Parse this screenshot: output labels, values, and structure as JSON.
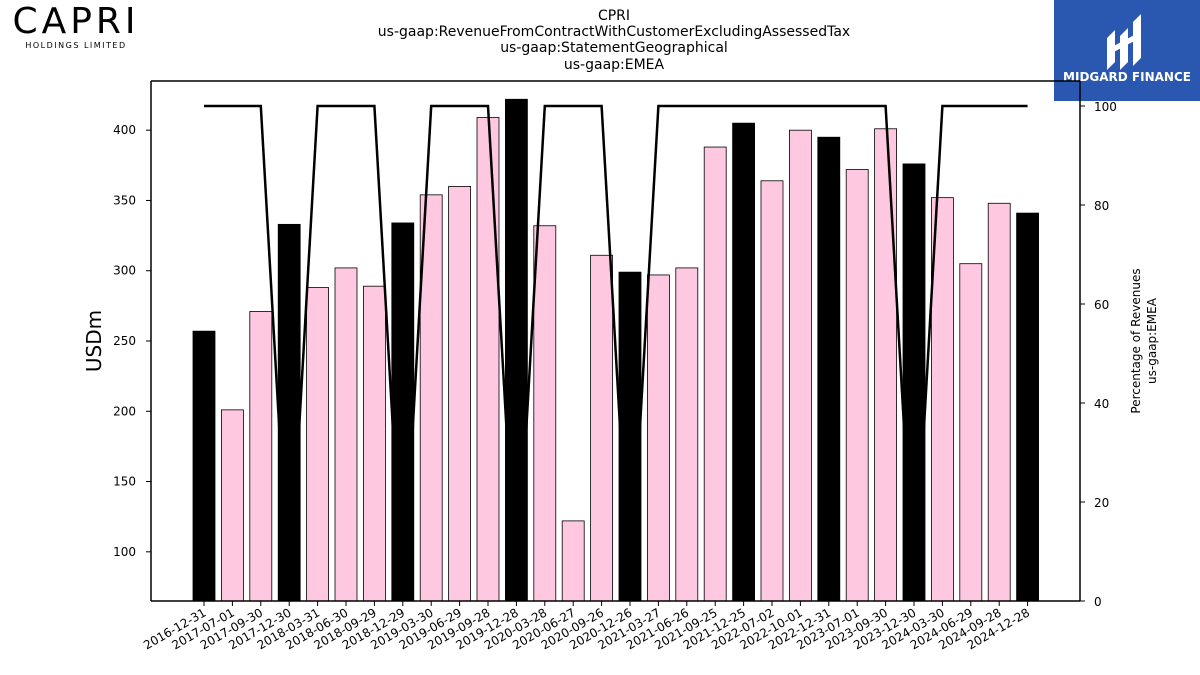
{
  "company_logo": {
    "name": "CAPRI",
    "tagline": "HOLDINGS LIMITED"
  },
  "badge": {
    "text": "MIDGARD FINANCE",
    "color": "#2a57b0"
  },
  "colors": {
    "highlight": "#000000",
    "normal": "#ffc8e1",
    "line": "#000000"
  },
  "chart_data": {
    "type": "bar",
    "title_lines": [
      "CPRI",
      "us-gaap:RevenueFromContractWithCustomerExcludingAssessedTax",
      "us-gaap:StatementGeographical",
      "us-gaap:EMEA"
    ],
    "ylabel": "USDm",
    "y2label_lines": [
      "Percentage of Revenues",
      "us-gaap:EMEA"
    ],
    "ylim": [
      65,
      435
    ],
    "y2lim": [
      0,
      100
    ],
    "yticks": [
      100,
      150,
      200,
      250,
      300,
      350,
      400
    ],
    "y2ticks": [
      0,
      20,
      40,
      60,
      80,
      100
    ],
    "categories": [
      "2016-12-31",
      "2017-07-01",
      "2017-09-30",
      "2017-12-30",
      "2018-03-31",
      "2018-06-30",
      "2018-09-29",
      "2018-12-29",
      "2019-03-30",
      "2019-06-29",
      "2019-09-28",
      "2019-12-28",
      "2020-03-28",
      "2020-06-27",
      "2020-09-26",
      "2020-12-26",
      "2021-03-27",
      "2021-06-26",
      "2021-09-25",
      "2021-12-25",
      "2022-07-02",
      "2022-10-01",
      "2022-12-31",
      "2023-07-01",
      "2023-09-30",
      "2023-12-30",
      "2024-03-30",
      "2024-06-29",
      "2024-09-28",
      "2024-12-28"
    ],
    "values": [
      257,
      201,
      271,
      333,
      288,
      302,
      289,
      334,
      354,
      360,
      409,
      422,
      332,
      122,
      311,
      299,
      297,
      302,
      388,
      405,
      364,
      400,
      395,
      372,
      401,
      376,
      352,
      305,
      348,
      341
    ],
    "highlight": [
      true,
      false,
      false,
      true,
      false,
      false,
      false,
      true,
      false,
      false,
      false,
      true,
      false,
      false,
      false,
      true,
      false,
      false,
      false,
      true,
      false,
      false,
      true,
      false,
      false,
      true,
      false,
      false,
      false,
      true
    ],
    "percentage": [
      100,
      100,
      100,
      0,
      100,
      100,
      100,
      0,
      100,
      100,
      100,
      0,
      100,
      100,
      100,
      0,
      100,
      100,
      100,
      100,
      100,
      100,
      100,
      100,
      100,
      0,
      100,
      100,
      100,
      100
    ]
  }
}
